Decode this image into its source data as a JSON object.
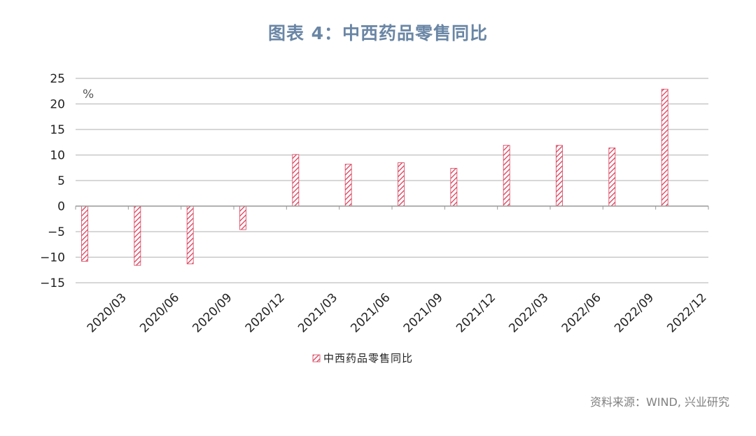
{
  "title": "图表 4：中西药品零售同比",
  "source": "资料来源：WIND, 兴业研究",
  "chart_data": {
    "type": "bar",
    "unit_label": "%",
    "categories": [
      "2020/03",
      "2020/06",
      "2020/09",
      "2020/12",
      "2021/03",
      "2021/06",
      "2021/09",
      "2021/12",
      "2022/03",
      "2022/06",
      "2022/09",
      "2022/12"
    ],
    "series": [
      {
        "name": "中西药品零售同比",
        "values": [
          -10.8,
          -11.6,
          -11.3,
          -4.6,
          10.1,
          8.2,
          8.5,
          7.4,
          11.9,
          11.9,
          11.4,
          22.9
        ]
      }
    ],
    "ylim": [
      -15,
      25
    ],
    "yticks": [
      25,
      20,
      15,
      10,
      5,
      0,
      -5,
      -10,
      -15
    ],
    "grid": true,
    "legend_position": "bottom",
    "bar_color": "#d9405a"
  }
}
